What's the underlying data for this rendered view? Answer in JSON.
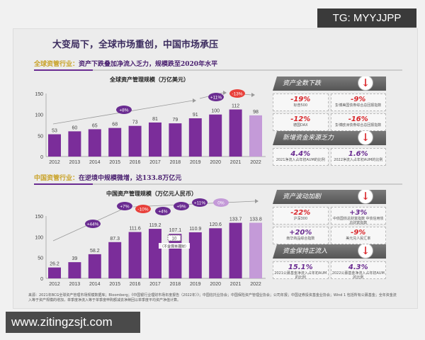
{
  "watermarks": {
    "top": "TG: MYYJJPP",
    "bottom": "www.zitingzsjt.com"
  },
  "title": "大变局下，全球市场重创，中国市场承压",
  "sections": [
    {
      "key": "全球资管行业：",
      "value": "资产下跌叠加净流入乏力，规模跌至2020年水平"
    },
    {
      "key": "中国资管行业：",
      "value": "在逆境中规模微增，达133.8万亿元"
    }
  ],
  "chart_data": [
    {
      "type": "bar",
      "title": "全球资产管理规模（万亿美元）",
      "categories": [
        "2012",
        "2013",
        "2014",
        "2015",
        "2016",
        "2017",
        "2018",
        "2019",
        "2020",
        "2021",
        "2022"
      ],
      "values": [
        53,
        60,
        65,
        68,
        73,
        81,
        79,
        91,
        100,
        112,
        98
      ],
      "ylim": [
        0,
        150
      ],
      "yticks": [
        0,
        50,
        100,
        150
      ],
      "growth_labels": [
        "+8%",
        "+11%",
        "-13%"
      ],
      "colors": {
        "bar": "#7b2d9a",
        "last": "#c49ad8",
        "pos": "#6a2c91",
        "neg": "#e8403a"
      }
    },
    {
      "type": "bar",
      "title": "中国资产管理规模（万亿元人民币）",
      "categories": [
        "2012",
        "2013",
        "2014",
        "2015",
        "2016",
        "2017",
        "2018",
        "2019",
        "2020",
        "2021",
        "2022"
      ],
      "values": [
        26.2,
        39.0,
        58.2,
        87.3,
        111.6,
        119.2,
        107.1,
        110.9,
        120.6,
        133.7,
        133.8
      ],
      "ylim": [
        0,
        150
      ],
      "yticks": [
        0,
        50,
        100,
        150
      ],
      "annotation": "不含保本理财",
      "annotation_value": "10",
      "growth_labels": [
        "+44%",
        "+7%",
        "-10%",
        "+4%",
        "+9%",
        "+11%",
        "0%"
      ],
      "colors": {
        "bar": "#7b2d9a",
        "last": "#c49ad8",
        "pos": "#6a2c91",
        "neg": "#e8403a"
      }
    }
  ],
  "panels": [
    {
      "header": "资产全数下跌",
      "icon": "down-arrow-icon",
      "cells": [
        {
          "value": "-19%",
          "label": "标普500",
          "tone": "red"
        },
        {
          "value": "-9%",
          "label": "彭博美国债券综合总回报指数",
          "tone": "red"
        },
        {
          "value": "-12%",
          "label": "德国DAX",
          "tone": "red"
        },
        {
          "value": "-16%",
          "label": "彭博欧洲债券综合总回报指数",
          "tone": "red"
        }
      ]
    },
    {
      "header": "新增资金来源乏力",
      "icon": "down-arrow-icon",
      "cells": [
        {
          "value": "4.4%",
          "label": "2021净流入占年初AUM的比例",
          "tone": "pur"
        },
        {
          "value": "1.6%",
          "label": "2022净流入占年初AUM的比例",
          "tone": "pur"
        }
      ]
    },
    {
      "header": "资产波动加剧",
      "icon": "down-arrow-icon",
      "cells": [
        {
          "value": "-22%",
          "label": "沪深300",
          "tone": "red"
        },
        {
          "value": "+3%",
          "label": "中债国债总财富指数 中债信用债总财富指数",
          "tone": "pur"
        },
        {
          "value": "+20%",
          "label": "南华商品综合指数",
          "tone": "pur"
        },
        {
          "value": "-9%",
          "label": "美元兑人民汇率",
          "tone": "red"
        }
      ]
    },
    {
      "header": "资金保持正流入",
      "icon": "down-arrow-icon",
      "cells": [
        {
          "value": "15.1%",
          "label": "2021公募基金净流入占年初AUM的比例",
          "tone": "pur"
        },
        {
          "value": "4.3%",
          "label": "2022公募基金净流入占年初AUM的比例",
          "tone": "pur"
        }
      ]
    }
  ],
  "source": "来源：2021年BCG全球资产管理市场规模数据库；Bloomberg；《中国银行业理财市场年度报告（2022年）》；中国信托业协会；中国保险资产管理业协会；公司年报；中国证券投资基金业协会；Wind 1 包括所有公募基金；全年资金流入等于资产规模的增加，单季度净流入等于单季度申购额减去净赎回以单季度平均资产净值计算。"
}
